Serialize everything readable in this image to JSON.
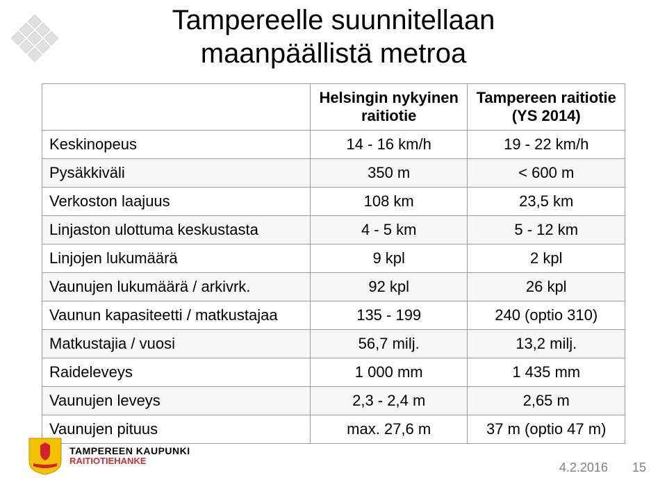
{
  "title": {
    "line1": "Tampereelle suunnitellaan",
    "line2": "maanpäällistä metroa"
  },
  "table": {
    "header_empty": "",
    "header_col1": "Helsingin nykyinen raitiotie",
    "header_col2": "Tampereen raitiotie (YS 2014)",
    "rows": [
      {
        "label": "Keskinopeus",
        "c1": "14 - 16 km/h",
        "c2": "19 - 22 km/h"
      },
      {
        "label": "Pysäkkiväli",
        "c1": "350 m",
        "c2": "< 600 m"
      },
      {
        "label": "Verkoston laajuus",
        "c1": "108 km",
        "c2": "23,5 km"
      },
      {
        "label": "Linjaston ulottuma keskustasta",
        "c1": "4 - 5 km",
        "c2": "5 - 12 km"
      },
      {
        "label": "Linjojen lukumäärä",
        "c1": "9 kpl",
        "c2": "2 kpl"
      },
      {
        "label": "Vaunujen lukumäärä / arkivrk.",
        "c1": "92 kpl",
        "c2": "26 kpl"
      },
      {
        "label": "Vaunun kapasiteetti / matkustajaa",
        "c1": "135 - 199",
        "c2": "240 (optio 310)"
      },
      {
        "label": "Matkustajia / vuosi",
        "c1": "56,7 milj.",
        "c2": "13,2 milj."
      },
      {
        "label": "Raideleveys",
        "c1": "1 000 mm",
        "c2": "1 435 mm"
      },
      {
        "label": "Vaunujen leveys",
        "c1": "2,3 - 2,4 m",
        "c2": "2,65 m"
      },
      {
        "label": "Vaunujen pituus",
        "c1": "max. 27,6 m",
        "c2": "37 m (optio 47 m)"
      }
    ]
  },
  "brand": {
    "top": "TAMPEREEN KAUPUNKI",
    "sub": "RAITIOTIEHANKE"
  },
  "footer": {
    "date": "4.2.2016",
    "page": "15"
  },
  "colors": {
    "shield_fill": "#f2c100",
    "shield_accent": "#d3212d",
    "brand_red": "#c43131",
    "footer_gray": "#808080",
    "table_border": "#9a9a9a",
    "row_alt": "#f6f6f6"
  }
}
